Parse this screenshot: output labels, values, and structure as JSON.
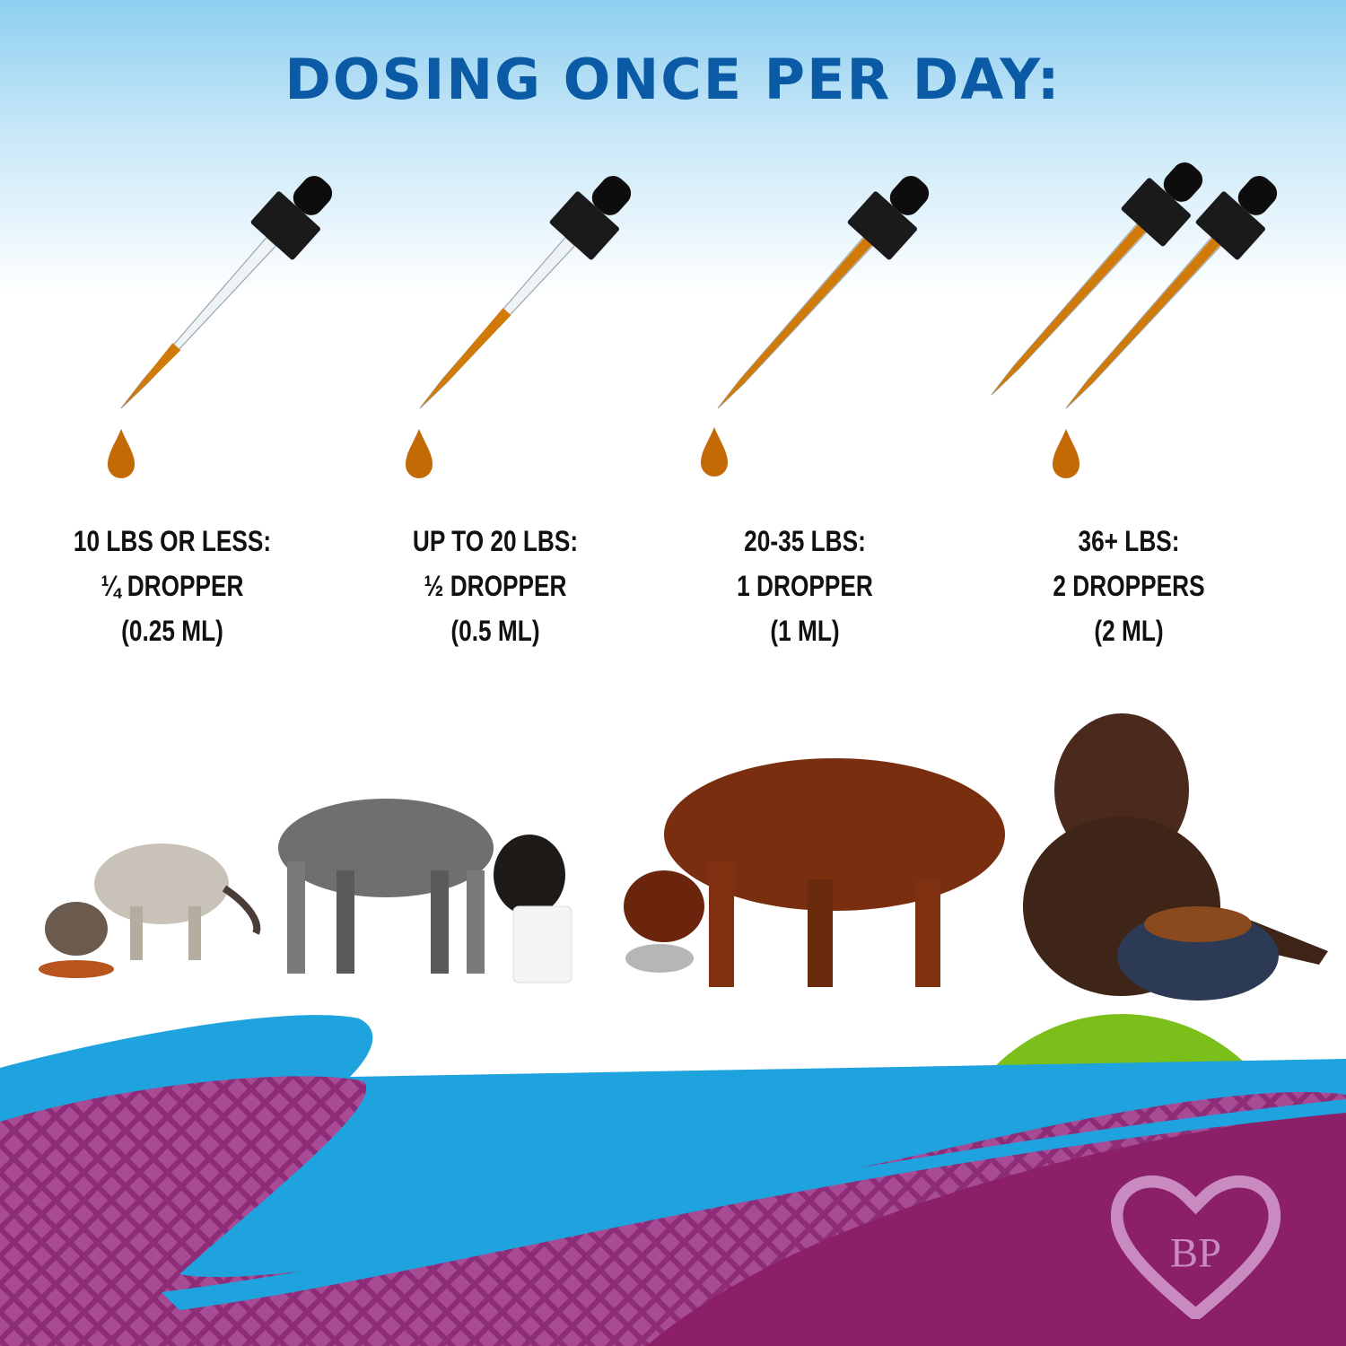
{
  "title": "DOSING ONCE PER DAY:",
  "doses": [
    {
      "weight": "10 LBS OR LESS:",
      "amount": "¼ DROPPER",
      "volume": "(0.25 ML)",
      "dropper_fill": 0.25
    },
    {
      "weight": "UP TO 20 LBS:",
      "amount": "½ DROPPER",
      "volume": "(0.5 ML)",
      "dropper_fill": 0.5
    },
    {
      "weight": "20-35 LBS:",
      "amount": "1 DROPPER",
      "volume": "(1 ML)",
      "dropper_fill": 1
    },
    {
      "weight": "36+ LBS:",
      "amount": "2 DROPPERS",
      "volume": "(2 ML)",
      "dropper_fill": 1
    }
  ],
  "logo": {
    "monogram": "BP"
  },
  "colors": {
    "title": "#0a5aa5",
    "oil": "#d07a0a",
    "blue_wave": "#1fa3de",
    "purple": "#8c2068",
    "green": "#7bbf1a",
    "logo": "#c98ac0"
  }
}
